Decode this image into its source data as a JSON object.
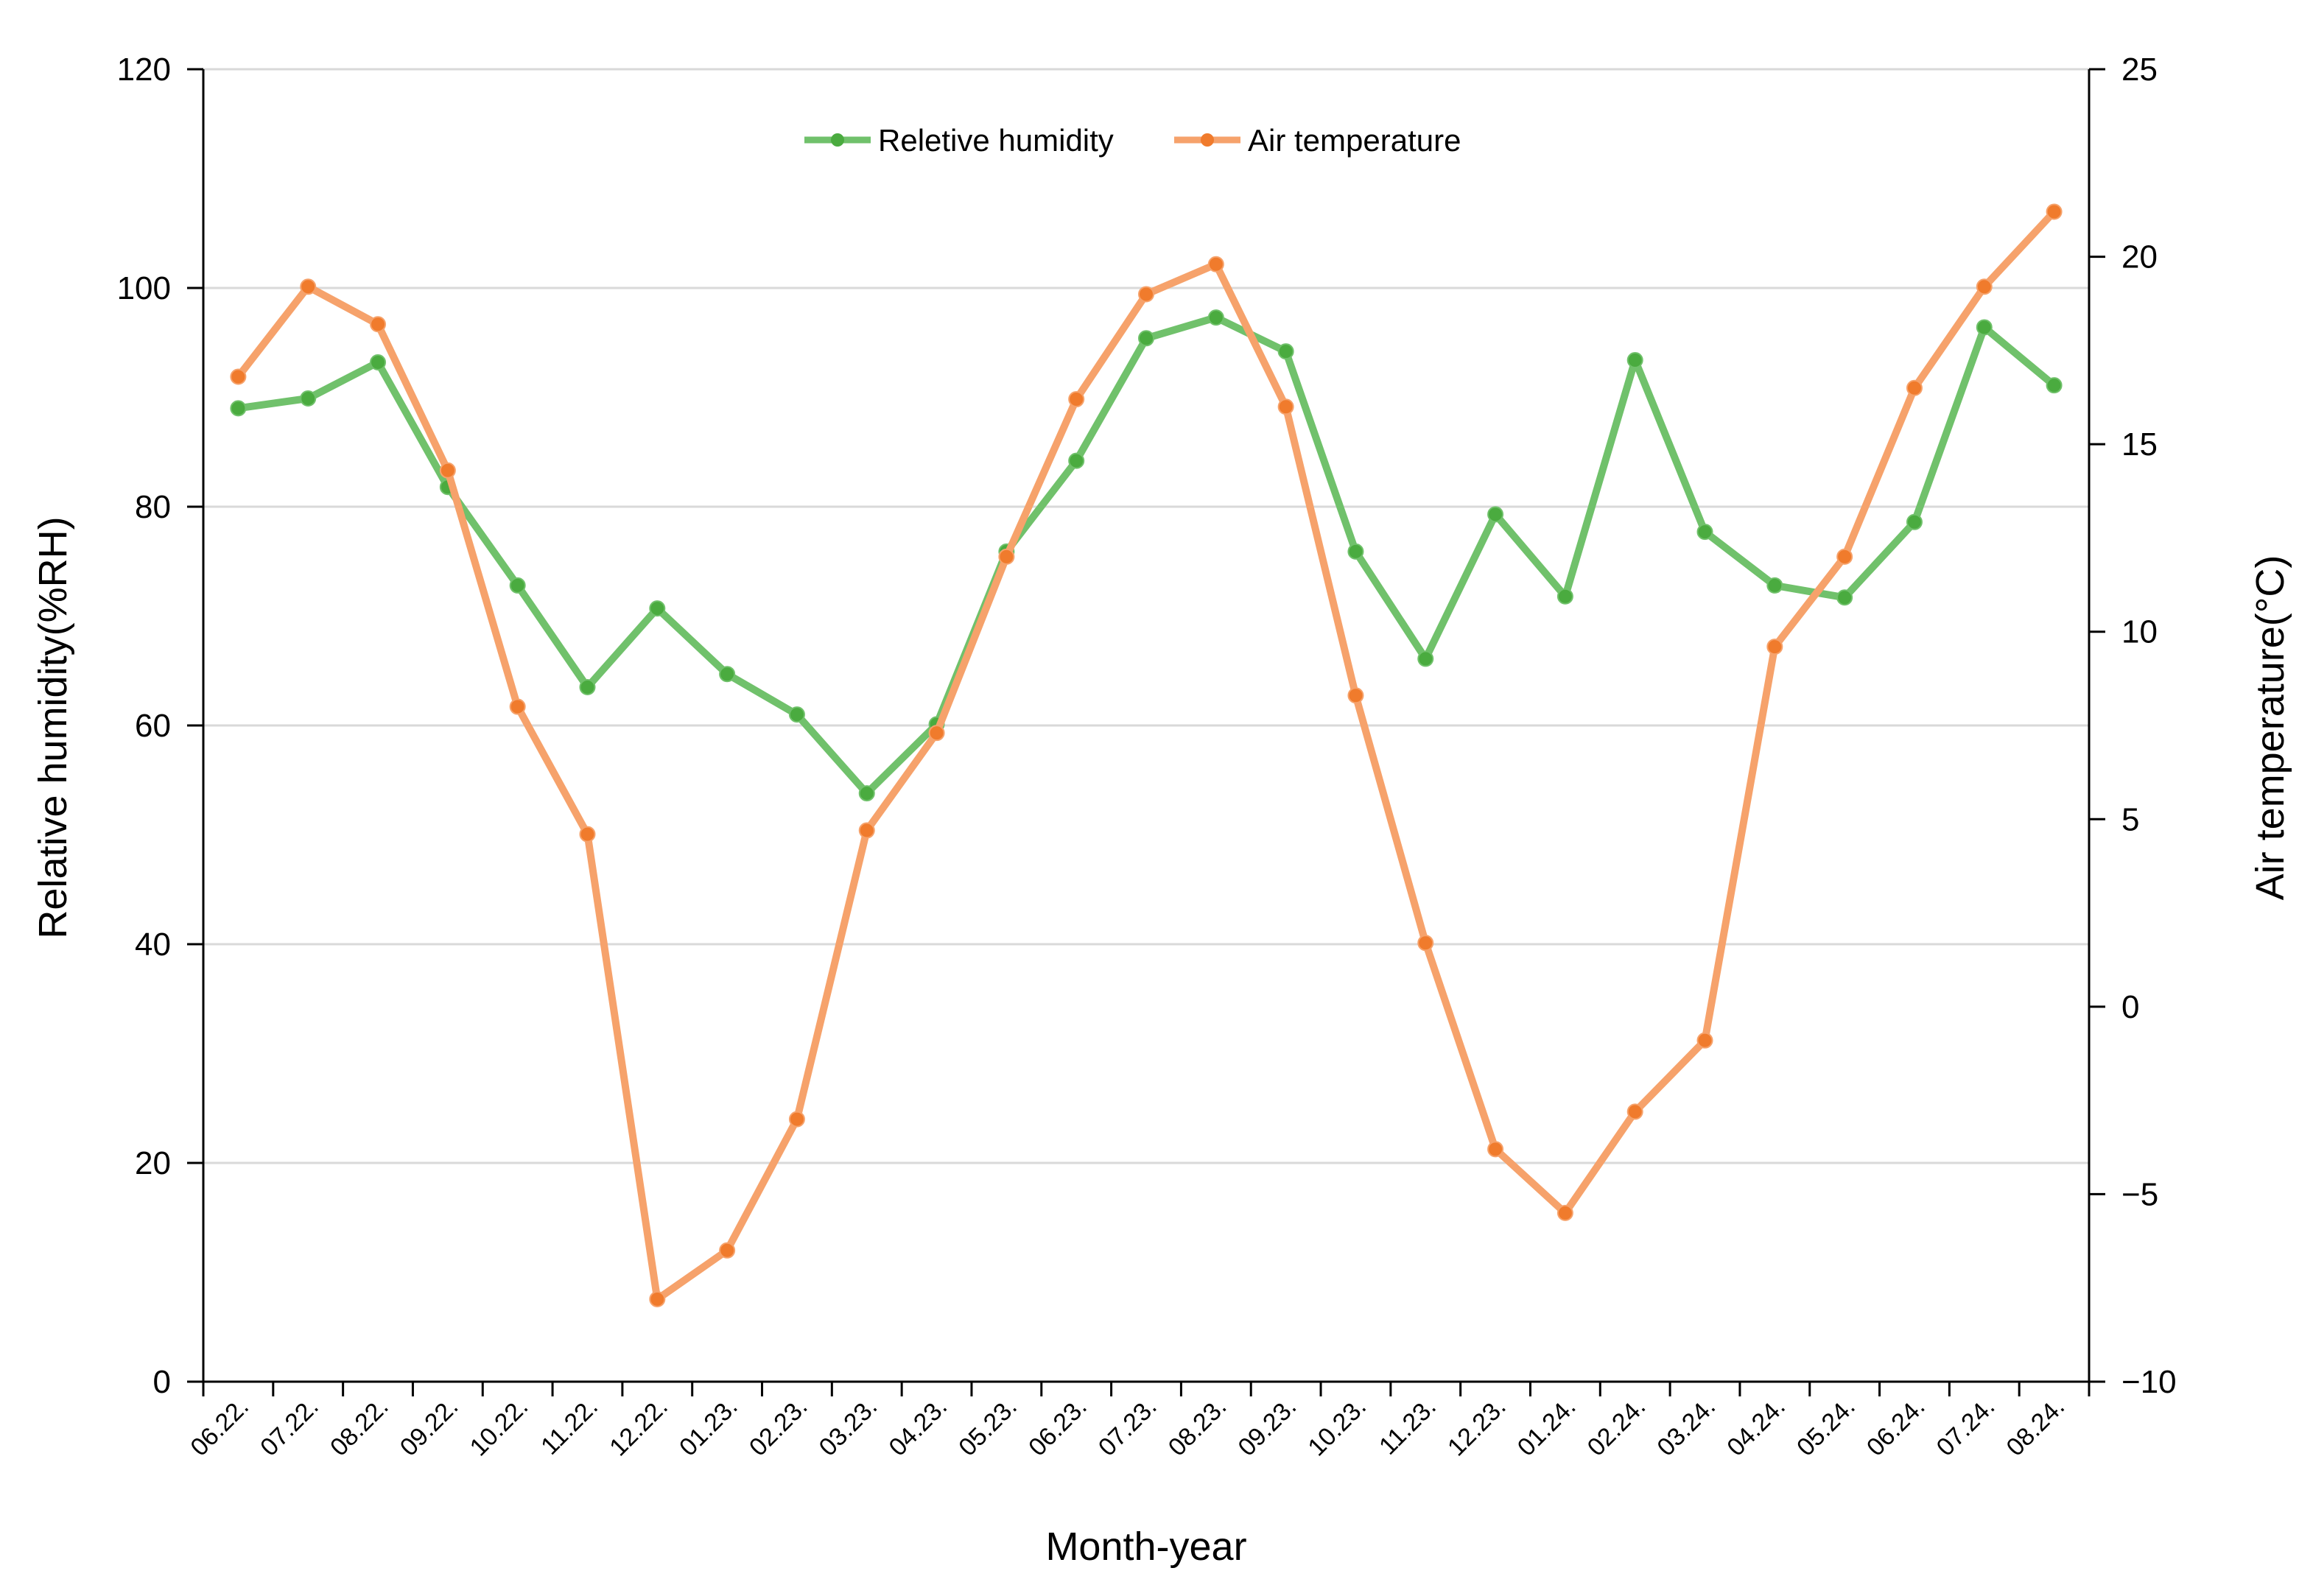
{
  "chart_data": {
    "type": "line",
    "title": "",
    "xlabel": "Month-year",
    "ylabel": "Relative humidity(%RH)",
    "y2label": "Air temperature(°C)",
    "ylim": [
      0,
      120
    ],
    "y2lim": [
      -10,
      25
    ],
    "yticks": [
      0,
      20,
      40,
      60,
      80,
      100,
      120
    ],
    "y2ticks": [
      -10,
      -5,
      0,
      5,
      10,
      15,
      20,
      25
    ],
    "y2tick_labels": [
      "−10",
      "−5",
      "0",
      "5",
      "10",
      "15",
      "20",
      "25"
    ],
    "grid": true,
    "legend_position": "top-center",
    "categories": [
      "06.22.",
      "07.22.",
      "08.22.",
      "09.22.",
      "10.22.",
      "11.22.",
      "12.22.",
      "01.23.",
      "02.23.",
      "03.23.",
      "04.23.",
      "05.23.",
      "06.23.",
      "07.23.",
      "08.23.",
      "09.23.",
      "10.23.",
      "11.23.",
      "12.23.",
      "01.24.",
      "02.24.",
      "03.24.",
      "04.24.",
      "05.24.",
      "06.24.",
      "07.24.",
      "08.24."
    ],
    "series": [
      {
        "name": "Reletive humidity",
        "axis": "left",
        "color": "#70c16b",
        "marker_color": "#4aab3f",
        "values": [
          89.0,
          89.9,
          93.2,
          81.8,
          72.8,
          63.5,
          70.7,
          64.7,
          61.0,
          53.8,
          60.1,
          75.9,
          84.2,
          95.4,
          97.3,
          94.2,
          75.9,
          66.1,
          79.3,
          71.8,
          93.4,
          77.7,
          72.8,
          71.7,
          78.6,
          96.4,
          91.1
        ]
      },
      {
        "name": "Air temperature",
        "axis": "right",
        "color": "#f6a26b",
        "marker_color": "#f07b2c",
        "values": [
          16.8,
          19.2,
          18.2,
          14.3,
          8.0,
          4.6,
          -7.8,
          -6.5,
          -3.0,
          4.7,
          7.3,
          12.0,
          16.2,
          19.0,
          19.8,
          16.0,
          8.3,
          1.7,
          -3.8,
          -5.5,
          -2.8,
          -0.9,
          9.6,
          12.0,
          16.5,
          19.2,
          21.2
        ]
      }
    ]
  }
}
